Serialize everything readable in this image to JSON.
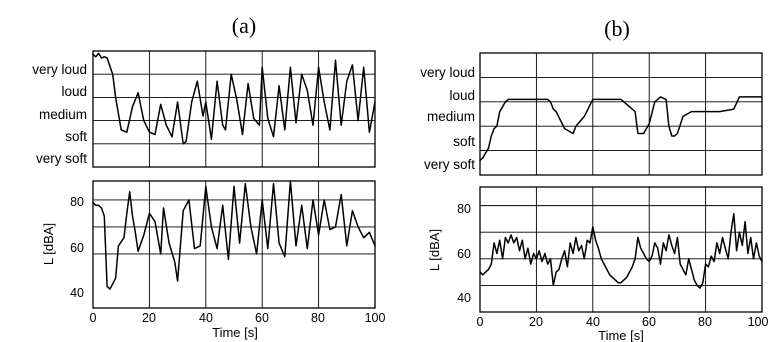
{
  "chart_data": [
    {
      "panel": "(a)",
      "type": "line",
      "ylabel": "",
      "categories": [
        "very loud",
        "loud",
        "medium",
        "soft",
        "very soft"
      ],
      "xlim": [
        0,
        100
      ],
      "ylim": [
        0,
        5
      ],
      "series": [
        {
          "x": [
            0,
            1,
            2,
            3,
            4,
            5,
            7,
            8,
            10,
            12,
            14,
            16,
            18,
            20,
            22,
            24,
            26,
            28,
            30,
            32,
            33,
            35,
            37,
            39,
            40,
            42,
            44,
            46,
            47,
            49,
            51,
            53,
            55,
            57,
            59,
            60,
            62,
            64,
            66,
            68,
            70,
            72,
            74,
            76,
            78,
            80,
            82,
            84,
            86,
            88,
            90,
            92,
            94,
            96,
            98,
            100
          ],
          "y": [
            4.85,
            4.75,
            4.9,
            4.7,
            4.75,
            4.7,
            4.0,
            3.0,
            1.6,
            1.5,
            2.6,
            3.2,
            2.0,
            1.5,
            1.4,
            2.7,
            1.8,
            1.3,
            2.8,
            1.0,
            1.1,
            2.8,
            3.7,
            2.2,
            2.8,
            1.2,
            3.7,
            1.8,
            1.6,
            4.0,
            2.9,
            1.4,
            3.6,
            2.1,
            1.8,
            4.3,
            2.1,
            1.3,
            3.5,
            1.6,
            4.3,
            1.9,
            4.0,
            3.3,
            1.8,
            4.3,
            2.8,
            1.6,
            4.6,
            1.8,
            3.7,
            4.4,
            2.0,
            4.3,
            1.5,
            2.8
          ]
        }
      ]
    },
    {
      "panel": "(a)",
      "type": "line",
      "xlabel": "Time [s]",
      "ylabel": "L [dBA]",
      "xlim": [
        0,
        100
      ],
      "ylim": [
        40,
        87
      ],
      "xticks": [
        0,
        20,
        40,
        60,
        80,
        100
      ],
      "yticks": [
        40,
        60,
        80
      ],
      "series": [
        {
          "x": [
            0,
            1,
            2,
            3,
            4,
            5,
            6,
            8,
            9,
            11,
            12,
            13,
            14,
            15,
            16,
            18,
            20,
            22,
            24,
            25,
            27,
            29,
            30,
            32,
            34,
            36,
            38,
            40,
            42,
            44,
            46,
            48,
            50,
            52,
            54,
            56,
            58,
            60,
            62,
            64,
            66,
            68,
            70,
            72,
            74,
            76,
            78,
            80,
            82,
            84,
            86,
            88,
            90,
            92,
            94,
            96,
            98,
            100
          ],
          "y": [
            79,
            78,
            78,
            77,
            74,
            48,
            47,
            51,
            63,
            66,
            75,
            83,
            74,
            68,
            61,
            67,
            75,
            72,
            60,
            77,
            64,
            57,
            50,
            76,
            80,
            62,
            63,
            85,
            70,
            62,
            78,
            58,
            85,
            64,
            86,
            70,
            60,
            80,
            62,
            86,
            64,
            59,
            87,
            63,
            78,
            62,
            80,
            67,
            80,
            69,
            70,
            82,
            63,
            76,
            70,
            66,
            68,
            63
          ]
        }
      ]
    },
    {
      "panel": "(b)",
      "type": "line",
      "ylabel": "",
      "categories": [
        "very loud",
        "loud",
        "medium",
        "soft",
        "very soft"
      ],
      "xlim": [
        0,
        100
      ],
      "ylim": [
        0,
        5
      ],
      "series": [
        {
          "x": [
            0,
            1,
            2,
            3,
            4,
            5,
            6,
            7,
            8,
            9,
            10,
            20,
            24,
            25,
            26,
            27,
            30,
            33,
            34,
            37,
            40,
            50,
            55,
            56,
            58,
            60,
            62,
            63,
            64,
            66,
            67,
            68,
            69,
            70,
            72,
            75,
            80,
            85,
            90,
            92,
            95,
            100
          ],
          "y": [
            0.6,
            0.7,
            0.9,
            1.1,
            1.6,
            1.9,
            2.0,
            2.6,
            2.8,
            3.0,
            3.1,
            3.1,
            3.1,
            3.0,
            2.7,
            2.6,
            1.9,
            1.7,
            2.0,
            2.4,
            3.1,
            3.1,
            2.6,
            1.7,
            1.7,
            2.1,
            3.0,
            3.1,
            3.2,
            3.1,
            2.0,
            1.6,
            1.6,
            1.7,
            2.4,
            2.6,
            2.6,
            2.6,
            2.7,
            3.2,
            3.2,
            3.2
          ]
        }
      ]
    },
    {
      "panel": "(b)",
      "type": "line",
      "xlabel": "Time [s]",
      "ylabel": "L [dBA]",
      "xlim": [
        0,
        100
      ],
      "ylim": [
        40,
        87
      ],
      "xticks": [
        0,
        20,
        40,
        60,
        80,
        100
      ],
      "yticks": [
        40,
        60,
        80
      ],
      "series": [
        {
          "x": [
            0,
            1,
            2,
            3,
            4,
            5,
            6,
            7,
            8,
            9,
            10,
            11,
            12,
            13,
            14,
            15,
            16,
            17,
            18,
            19,
            20,
            21,
            22,
            23,
            24,
            25,
            26,
            27,
            28,
            29,
            30,
            31,
            32,
            33,
            34,
            35,
            36,
            37,
            38,
            39,
            40,
            41,
            42,
            43,
            44,
            45,
            46,
            47,
            48,
            49,
            50,
            51,
            52,
            53,
            54,
            55,
            56,
            57,
            58,
            59,
            60,
            61,
            62,
            63,
            64,
            65,
            66,
            67,
            68,
            69,
            70,
            71,
            72,
            73,
            74,
            75,
            76,
            77,
            78,
            79,
            80,
            81,
            82,
            83,
            84,
            85,
            86,
            87,
            88,
            89,
            90,
            91,
            92,
            93,
            94,
            95,
            96,
            97,
            98,
            99,
            100
          ],
          "y": [
            55,
            54,
            55,
            56,
            58,
            66,
            62,
            67,
            60,
            68,
            66,
            69,
            66,
            68,
            63,
            67,
            60,
            64,
            58,
            62,
            60,
            63,
            59,
            62,
            58,
            60,
            50,
            55,
            56,
            60,
            63,
            57,
            66,
            62,
            68,
            63,
            65,
            60,
            67,
            66,
            72,
            67,
            64,
            60,
            58,
            56,
            54,
            53,
            52,
            51,
            51,
            52,
            53,
            55,
            57,
            60,
            68,
            64,
            62,
            60,
            59,
            61,
            66,
            64,
            58,
            66,
            63,
            69,
            65,
            62,
            68,
            58,
            56,
            54,
            60,
            56,
            52,
            50,
            49,
            51,
            58,
            57,
            61,
            59,
            66,
            62,
            68,
            64,
            60,
            70,
            77,
            63,
            70,
            65,
            74,
            62,
            68,
            60,
            66,
            61,
            59
          ]
        }
      ]
    }
  ],
  "labels": {
    "panel_a": "(a)",
    "panel_b": "(b)",
    "categories": [
      "very loud",
      "loud",
      "medium",
      "soft",
      "very soft"
    ],
    "ylabel": "L [dBA]",
    "xlabel": "Time [s]",
    "xticks": [
      "0",
      "20",
      "40",
      "60",
      "80",
      "100"
    ],
    "yticks": [
      "40",
      "60",
      "80"
    ]
  }
}
